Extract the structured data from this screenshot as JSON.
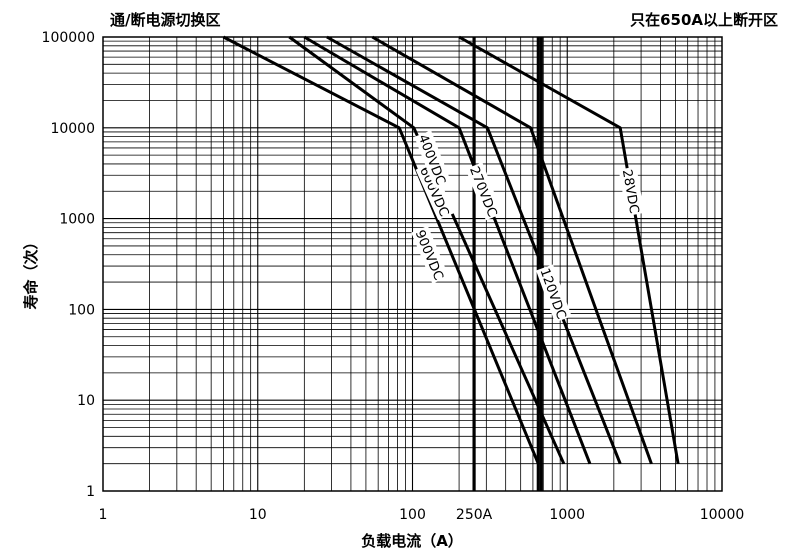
{
  "chart_data": {
    "type": "line",
    "title_left": "通/断电源切换区",
    "title_right": "只在650A以上断开区",
    "xlabel": "负载电流（A）",
    "ylabel": "寿命（次）",
    "x_scale": "log",
    "y_scale": "log",
    "xlim": [
      1,
      10000
    ],
    "ylim": [
      1,
      100000
    ],
    "x_ticks": [
      {
        "value": 1,
        "label": "1"
      },
      {
        "value": 10,
        "label": "10"
      },
      {
        "value": 100,
        "label": "100"
      },
      {
        "value": 250,
        "label": "250A"
      },
      {
        "value": 1000,
        "label": "1000"
      },
      {
        "value": 10000,
        "label": "10000"
      }
    ],
    "y_ticks": [
      {
        "value": 1,
        "label": "1"
      },
      {
        "value": 10,
        "label": "10"
      },
      {
        "value": 100,
        "label": "100"
      },
      {
        "value": 1000,
        "label": "1000"
      },
      {
        "value": 10000,
        "label": "10000"
      },
      {
        "value": 100000,
        "label": "100000"
      }
    ],
    "reference_lines": [
      {
        "x": 250
      },
      {
        "x": 650
      },
      {
        "x": 680
      }
    ],
    "grid": true,
    "series": [
      {
        "name": "900VDC",
        "label_at": [
          130,
          400
        ],
        "points": [
          [
            6,
            100000
          ],
          [
            82,
            10000
          ],
          [
            650,
            2
          ]
        ]
      },
      {
        "name": "600VDC",
        "label_at": [
          140,
          2000
        ],
        "points": [
          [
            16,
            100000
          ],
          [
            102,
            10000
          ],
          [
            950,
            2
          ]
        ]
      },
      {
        "name": "400VDC",
        "label_at": [
          135,
          4500
        ],
        "points": [
          [
            20,
            100000
          ],
          [
            200,
            10000
          ],
          [
            1400,
            2
          ]
        ]
      },
      {
        "name": "270VDC",
        "label_at": [
          290,
          2000
        ],
        "points": [
          [
            28,
            100000
          ],
          [
            305,
            10000
          ],
          [
            2200,
            2
          ]
        ]
      },
      {
        "name": "120VDC",
        "label_at": [
          820,
          150
        ],
        "points": [
          [
            55,
            100000
          ],
          [
            580,
            10000
          ],
          [
            3500,
            2
          ]
        ]
      },
      {
        "name": "28VDC",
        "label_at": [
          2600,
          2000
        ],
        "points": [
          [
            200,
            100000
          ],
          [
            2200,
            10000
          ],
          [
            5200,
            2
          ]
        ]
      }
    ]
  }
}
